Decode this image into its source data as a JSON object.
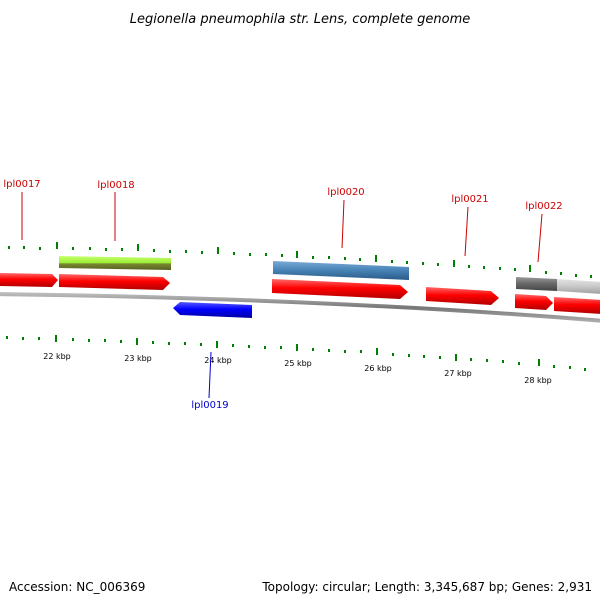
{
  "title": "Legionella pneumophila str. Lens, complete genome",
  "colors": {
    "forward_cds": "#ff0000",
    "reverse_cds": "#0000ff",
    "backbone": "#888888",
    "ticks": "#008000",
    "label_forward": "#cc0000",
    "label_reverse": "#0000cc",
    "rna_green": "#99ee33",
    "rna_steel": "#4682b4",
    "rna_gray": "#777777"
  },
  "genes": [
    {
      "id": "lpl0017",
      "strand": "forward",
      "label": "lpl0017"
    },
    {
      "id": "lpl0018",
      "strand": "forward",
      "label": "lpl0018"
    },
    {
      "id": "lpl0019",
      "strand": "reverse",
      "label": "lpl0019"
    },
    {
      "id": "lpl0020",
      "strand": "forward",
      "label": "lpl0020"
    },
    {
      "id": "lpl0021",
      "strand": "forward",
      "label": "lpl0021"
    },
    {
      "id": "lpl0022",
      "strand": "forward",
      "label": "lpl0022"
    }
  ],
  "scale_labels": [
    "22 kbp",
    "23 kbp",
    "24 kbp",
    "25 kbp",
    "26 kbp",
    "27 kbp",
    "28 kbp"
  ],
  "footer": {
    "accession": "Accession: NC_006369",
    "summary": "Topology: circular; Length: 3,345,687 bp; Genes: 2,931"
  }
}
